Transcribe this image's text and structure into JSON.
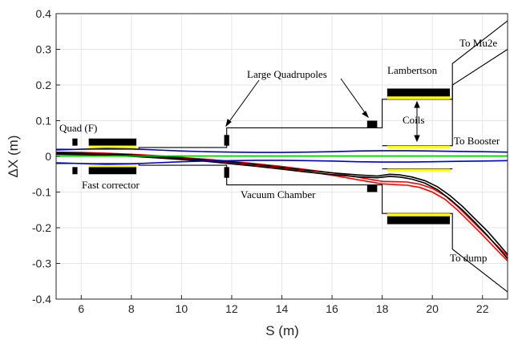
{
  "chart_data": {
    "type": "line",
    "xlabel": "S (m)",
    "ylabel": "ΔX (m)",
    "xlim": [
      5,
      23
    ],
    "ylim": [
      -0.4,
      0.4
    ],
    "x_ticks": [
      "6",
      "8",
      "10",
      "12",
      "14",
      "16",
      "18",
      "20",
      "22"
    ],
    "y_ticks": [
      "0.4",
      "0.3",
      "0.2",
      "0.1",
      "0",
      "-0.1",
      "-0.2",
      "-0.3",
      "-0.4"
    ],
    "grid": true,
    "colors": {
      "red": "#ff0000",
      "black": "#000000",
      "blue": "#0000cc",
      "green": "#00c000",
      "yellow": "#ffff00",
      "magnet": "#000000",
      "border": "#262626",
      "grid": "#e6e6e6"
    },
    "series": [
      {
        "color": "red",
        "x": [
          5,
          6,
          7,
          8,
          9,
          10,
          11,
          12,
          13,
          14,
          15,
          16,
          17,
          18,
          18.5,
          19,
          19.5,
          20,
          20.5,
          21,
          21.5,
          22,
          22.5,
          23
        ],
        "y": [
          0.012,
          0.011,
          0.009,
          0.006,
          0.002,
          -0.003,
          -0.008,
          -0.014,
          -0.021,
          -0.028,
          -0.037,
          -0.046,
          -0.058,
          -0.07,
          -0.071,
          -0.072,
          -0.078,
          -0.09,
          -0.11,
          -0.14,
          -0.175,
          -0.21,
          -0.245,
          -0.28
        ]
      },
      {
        "color": "red",
        "x": [
          5,
          6,
          7,
          8,
          9,
          10,
          11,
          12,
          13,
          14,
          15,
          16,
          17,
          18,
          18.5,
          19,
          19.5,
          20,
          20.5,
          21,
          21.5,
          22,
          22.5,
          23
        ],
        "y": [
          0.008,
          0.007,
          0.005,
          0.002,
          -0.002,
          -0.007,
          -0.012,
          -0.019,
          -0.026,
          -0.034,
          -0.043,
          -0.053,
          -0.065,
          -0.077,
          -0.079,
          -0.081,
          -0.087,
          -0.1,
          -0.12,
          -0.15,
          -0.185,
          -0.22,
          -0.257,
          -0.293
        ]
      },
      {
        "color": "black",
        "x": [
          5,
          6,
          7,
          8,
          9,
          10,
          11,
          12,
          13,
          14,
          15,
          16,
          17,
          17.8,
          18.3,
          18.7,
          19.2,
          19.7,
          20.2,
          20.7,
          21.2,
          21.7,
          22.2,
          22.7,
          23
        ],
        "y": [
          0.01,
          0.009,
          0.007,
          0.004,
          0,
          -0.005,
          -0.01,
          -0.016,
          -0.023,
          -0.031,
          -0.039,
          -0.046,
          -0.052,
          -0.055,
          -0.05,
          -0.052,
          -0.058,
          -0.068,
          -0.085,
          -0.11,
          -0.14,
          -0.175,
          -0.21,
          -0.25,
          -0.275
        ]
      },
      {
        "color": "black",
        "x": [
          5,
          6,
          7,
          8,
          9,
          10,
          11,
          12,
          13,
          14,
          15,
          16,
          17,
          17.8,
          18.3,
          18.7,
          19.2,
          19.7,
          20.2,
          20.7,
          21.2,
          21.7,
          22.2,
          22.7,
          23
        ],
        "y": [
          0.006,
          0.005,
          0.003,
          0,
          -0.004,
          -0.009,
          -0.014,
          -0.021,
          -0.028,
          -0.036,
          -0.044,
          -0.051,
          -0.057,
          -0.06,
          -0.056,
          -0.058,
          -0.064,
          -0.075,
          -0.093,
          -0.12,
          -0.15,
          -0.185,
          -0.222,
          -0.262,
          -0.287
        ]
      },
      {
        "color": "blue",
        "x": [
          5,
          6,
          7,
          8,
          9,
          10,
          11,
          12,
          13,
          14,
          15,
          16,
          17,
          18,
          19,
          20,
          21,
          22,
          23
        ],
        "y": [
          0.018,
          0.02,
          0.022,
          0.021,
          0.018,
          0.015,
          0.013,
          0.012,
          0.011,
          0.011,
          0.012,
          0.013,
          0.015,
          0.016,
          0.016,
          0.015,
          0.014,
          0.013,
          0.012
        ]
      },
      {
        "color": "blue",
        "x": [
          5,
          6,
          7,
          8,
          9,
          10,
          11,
          12,
          13,
          14,
          15,
          16,
          17,
          18,
          19,
          20,
          21,
          22,
          23
        ],
        "y": [
          -0.018,
          -0.02,
          -0.022,
          -0.021,
          -0.018,
          -0.015,
          -0.013,
          -0.012,
          -0.011,
          -0.011,
          -0.012,
          -0.013,
          -0.015,
          -0.016,
          -0.016,
          -0.015,
          -0.014,
          -0.013,
          -0.012
        ]
      },
      {
        "color": "green",
        "x": [
          5,
          6,
          7,
          8,
          9,
          10,
          11,
          12,
          13,
          14,
          15,
          16,
          17,
          18,
          19,
          20,
          21,
          22,
          23
        ],
        "y": [
          0.001,
          0.001,
          0.001,
          0.001,
          0.001,
          0.001,
          0.001,
          0.001,
          0.001,
          0.001,
          0.001,
          0.001,
          0.001,
          0.001,
          0.001,
          0.001,
          0.001,
          0.001,
          0.001
        ]
      }
    ],
    "vacuum_chamber": {
      "upper": {
        "x": [
          5,
          8.3,
          8.3,
          11.8,
          11.8,
          18,
          18,
          20.8,
          20.8,
          23
        ],
        "y": [
          0.02,
          0.02,
          0.025,
          0.025,
          0.08,
          0.08,
          0.16,
          0.16,
          0.26,
          0.38
        ]
      },
      "lower": {
        "x": [
          5,
          8.3,
          8.3,
          11.8,
          11.8,
          18,
          18,
          20.8,
          20.8,
          23
        ],
        "y": [
          -0.02,
          -0.02,
          -0.025,
          -0.025,
          -0.08,
          -0.08,
          -0.16,
          -0.16,
          -0.26,
          -0.38
        ]
      },
      "upper_inner": {
        "x": [
          18,
          20.8,
          20.8,
          23
        ],
        "y": [
          0.03,
          0.03,
          0.2,
          0.3
        ]
      },
      "lower_inner": {
        "x": [
          18,
          20.8
        ],
        "y": [
          -0.035,
          -0.035
        ]
      }
    },
    "magnets": [
      {
        "kind": "quad",
        "x0": 5.65,
        "x1": 5.85,
        "y0": 0.03,
        "y1": 0.05
      },
      {
        "kind": "quad",
        "x0": 5.65,
        "x1": 5.85,
        "y0": -0.05,
        "y1": -0.03
      },
      {
        "kind": "corrector",
        "x0": 6.3,
        "x1": 8.2,
        "y0": 0.03,
        "y1": 0.05
      },
      {
        "kind": "corrector",
        "x0": 6.3,
        "x1": 8.2,
        "y0": -0.05,
        "y1": -0.03
      },
      {
        "kind": "quad",
        "x0": 11.7,
        "x1": 11.9,
        "y0": 0.03,
        "y1": 0.06
      },
      {
        "kind": "quad",
        "x0": 11.7,
        "x1": 11.9,
        "y0": -0.06,
        "y1": -0.03
      },
      {
        "kind": "quad",
        "x0": 17.4,
        "x1": 17.8,
        "y0": 0.08,
        "y1": 0.1
      },
      {
        "kind": "quad",
        "x0": 17.4,
        "x1": 17.8,
        "y0": -0.1,
        "y1": -0.08
      },
      {
        "kind": "lambertson",
        "x0": 18.2,
        "x1": 20.7,
        "y0": 0.16,
        "y1": 0.19
      },
      {
        "kind": "lambertson",
        "x0": 18.2,
        "x1": 20.7,
        "y0": -0.19,
        "y1": -0.16
      }
    ],
    "coils": [
      {
        "x0": 18.2,
        "x1": 20.7,
        "y0": 0.16,
        "y1": 0.168
      },
      {
        "x0": 18.2,
        "x1": 20.7,
        "y0": -0.168,
        "y1": -0.16
      },
      {
        "x0": 18.2,
        "x1": 20.7,
        "y0": 0.023,
        "y1": 0.03
      },
      {
        "x0": 18.2,
        "x1": 20.7,
        "y0": -0.043,
        "y1": -0.035
      }
    ],
    "annotations": [
      {
        "id": "quad-f",
        "text": "Quad (F)"
      },
      {
        "id": "fast-corrector",
        "text": "Fast corrector"
      },
      {
        "id": "large-quadrupoles",
        "text": "Large Quadrupoles"
      },
      {
        "id": "vacuum-chamber",
        "text": "Vacuum Chamber"
      },
      {
        "id": "lambertson",
        "text": "Lambertson"
      },
      {
        "id": "coils",
        "text": "Coils"
      },
      {
        "id": "to-mu2e",
        "text": "To Mu2e"
      },
      {
        "id": "to-booster",
        "text": "To Booster"
      },
      {
        "id": "to-dump",
        "text": "To dump"
      }
    ]
  }
}
